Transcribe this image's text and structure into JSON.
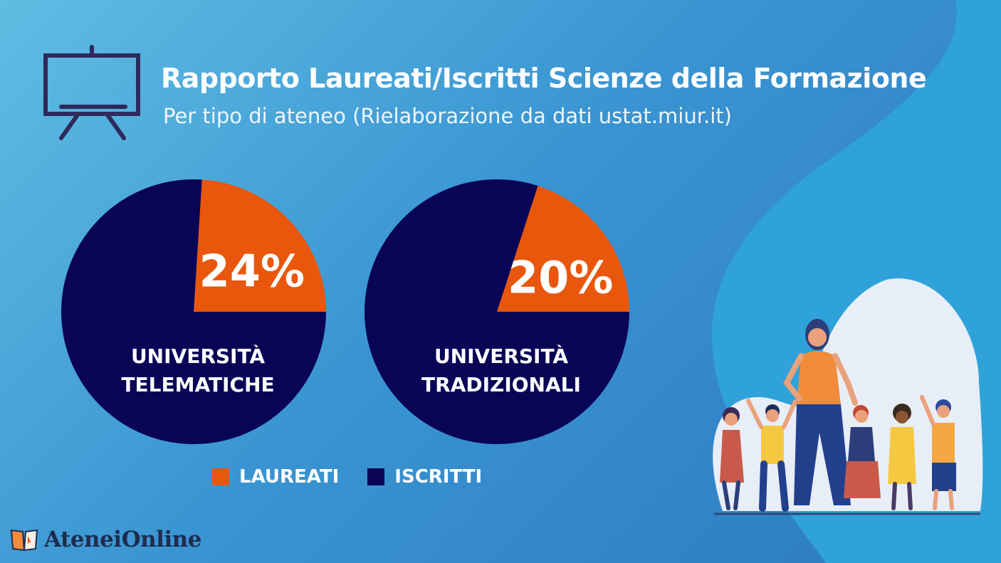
{
  "header": {
    "title": "Rapporto Laureati/Iscritti Scienze della Formazione",
    "subtitle": "Per tipo di ateneo (Rielaborazione da dati ustat.miur.it)"
  },
  "chart_data": [
    {
      "type": "pie",
      "title": "UNIVERSITÀ TELEMATICHE",
      "label_lines": [
        "UNIVERSITÀ",
        "TELEMATICHE"
      ],
      "slices": [
        {
          "name": "LAUREATI",
          "value": 24,
          "label": "24%"
        },
        {
          "name": "ISCRITTI",
          "value": 76
        }
      ]
    },
    {
      "type": "pie",
      "title": "UNIVERSITÀ TRADIZIONALI",
      "label_lines": [
        "UNIVERSITÀ",
        "TRADIZIONALI"
      ],
      "slices": [
        {
          "name": "LAUREATI",
          "value": 20,
          "label": "20%"
        },
        {
          "name": "ISCRITTI",
          "value": 80
        }
      ]
    }
  ],
  "legend": [
    {
      "name": "LAUREATI",
      "color": "#e8570c"
    },
    {
      "name": "ISCRITTI",
      "color": "#0a0456"
    }
  ],
  "colors": {
    "laureati": "#e8570c",
    "iscritti": "#0a0456",
    "background": "#3a95d2"
  },
  "icons": {
    "header": "presentation-board-icon",
    "logo": "open-book-icon"
  },
  "logo": {
    "text": "AteneiOnline"
  }
}
